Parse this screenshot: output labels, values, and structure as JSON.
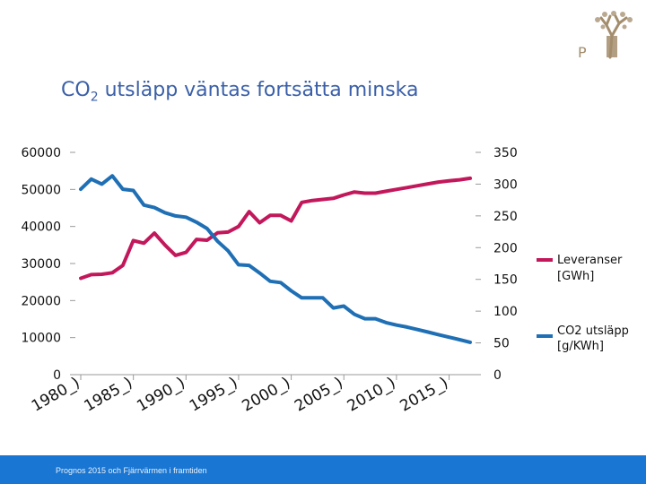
{
  "title": {
    "prefix": "CO",
    "sub": "2",
    "rest": " utsläpp väntas fortsätta minska"
  },
  "footer": "Prognos 2015 och Fjärrvärmen i framtiden",
  "logo": {
    "icon": "tree-logo-icon",
    "text": "P",
    "color": "#a38d6d"
  },
  "colors": {
    "leveranser": "#c2185b",
    "co2": "#1f6fb5",
    "footer_bar": "#1976d2",
    "title": "#3a5fa8"
  },
  "chart_data": {
    "type": "line",
    "title": "CO2 utsläpp väntas fortsätta minska",
    "x_tick_labels": [
      "1980_)",
      "1985_)",
      "1990_)",
      "1995_)",
      "2000_)",
      "2005_)",
      "2010_)",
      "2015_)"
    ],
    "x": [
      1980,
      1981,
      1982,
      1983,
      1984,
      1985,
      1986,
      1987,
      1988,
      1989,
      1990,
      1991,
      1992,
      1993,
      1994,
      1995,
      1996,
      1997,
      1998,
      1999,
      2000,
      2001,
      2002,
      2003,
      2004,
      2005,
      2006,
      2007,
      2008,
      2009,
      2010,
      2011,
      2012,
      2013,
      2014,
      2015,
      2016,
      2017
    ],
    "xlim": [
      1980,
      2017
    ],
    "left_axis": {
      "ticks": [
        "0",
        "10000",
        "20000",
        "30000",
        "40000",
        "50000",
        "60000"
      ],
      "ylim": [
        0,
        60000
      ]
    },
    "right_axis": {
      "ticks": [
        "0",
        "50",
        "100",
        "150",
        "200",
        "250",
        "300",
        "350"
      ],
      "ylim": [
        0,
        350
      ]
    },
    "grid": false,
    "legend_position": "right",
    "series": [
      {
        "name": "Leveranser [GWh]",
        "axis": "left",
        "color": "#c2185b",
        "values": [
          26000,
          27000,
          27100,
          27500,
          29500,
          36200,
          35500,
          38200,
          35000,
          32200,
          33000,
          36500,
          36300,
          38300,
          38500,
          40000,
          44000,
          41000,
          43000,
          43000,
          41500,
          46500,
          47000,
          47300,
          47600,
          48500,
          49300,
          49000,
          49000,
          49500,
          50000,
          50500,
          51000,
          51500,
          52000,
          52300,
          52600,
          53000
        ]
      },
      {
        "name": "CO2 utsläpp [g/KWh]",
        "axis": "right",
        "color": "#1f6fb5",
        "values": [
          292,
          308,
          300,
          313,
          292,
          290,
          267,
          263,
          255,
          250,
          248,
          240,
          230,
          210,
          195,
          173,
          172,
          160,
          147,
          145,
          132,
          121,
          121,
          121,
          105,
          108,
          95,
          88,
          88,
          82,
          78,
          75,
          71,
          67,
          63,
          59,
          55,
          51
        ]
      }
    ]
  }
}
